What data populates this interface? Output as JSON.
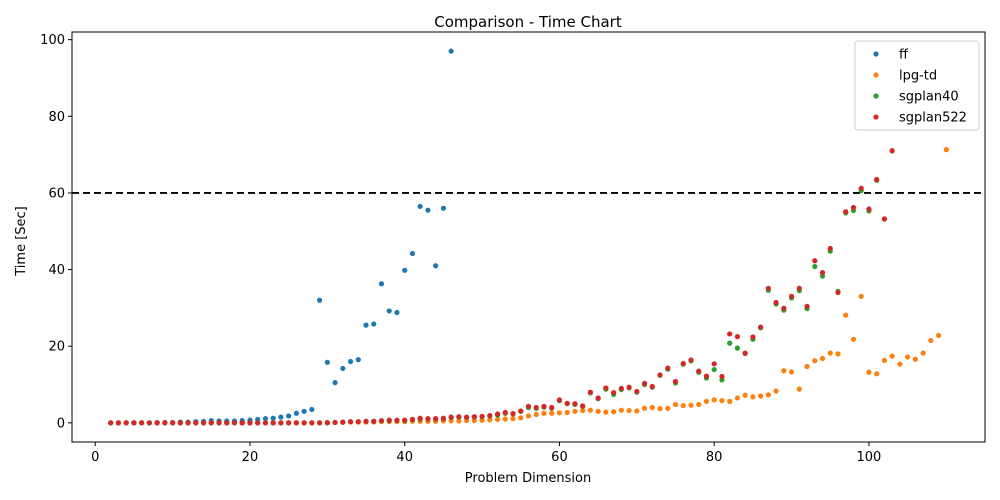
{
  "chart_data": {
    "type": "scatter",
    "title": "Comparison - Time Chart",
    "xlabel": "Problem Dimension",
    "ylabel": "Time [Sec]",
    "xlim": [
      -3,
      115
    ],
    "ylim": [
      -5,
      102
    ],
    "xticks": [
      0,
      20,
      40,
      60,
      80,
      100
    ],
    "yticks": [
      0,
      20,
      40,
      60,
      80,
      100
    ],
    "grid": false,
    "legend_position": "top-right",
    "reference_line": {
      "y": 60,
      "style": "dashed",
      "color": "#000000"
    },
    "series": [
      {
        "name": "ff",
        "color": "#1f77b4",
        "x": [
          2,
          3,
          4,
          5,
          6,
          7,
          8,
          9,
          10,
          11,
          12,
          13,
          14,
          15,
          16,
          17,
          18,
          19,
          20,
          21,
          22,
          23,
          24,
          25,
          26,
          27,
          28,
          29,
          30,
          31,
          32,
          33,
          34,
          35,
          36,
          37,
          38,
          39,
          40,
          41,
          42,
          43,
          44,
          45,
          46
        ],
        "y": [
          0,
          0,
          0,
          0,
          0,
          0,
          0.1,
          0.1,
          0.1,
          0.2,
          0.2,
          0.3,
          0.4,
          0.6,
          0.5,
          0.5,
          0.5,
          0.6,
          0.7,
          0.9,
          1.1,
          1.2,
          1.5,
          1.8,
          2.5,
          3.0,
          3.5,
          32,
          15.8,
          10.5,
          14.2,
          16,
          16.5,
          25.5,
          25.8,
          36.3,
          29.2,
          28.8,
          39.8,
          44.2,
          56.5,
          55.5,
          41,
          56,
          97
        ]
      },
      {
        "name": "lpg-td",
        "color": "#ff7f0e",
        "x": [
          2,
          3,
          4,
          5,
          6,
          7,
          8,
          9,
          10,
          11,
          12,
          13,
          14,
          15,
          16,
          17,
          18,
          19,
          20,
          21,
          22,
          23,
          24,
          25,
          26,
          27,
          28,
          29,
          30,
          31,
          32,
          33,
          34,
          35,
          36,
          37,
          38,
          39,
          40,
          41,
          42,
          43,
          44,
          45,
          46,
          47,
          48,
          49,
          50,
          51,
          52,
          53,
          54,
          55,
          56,
          57,
          58,
          59,
          60,
          61,
          62,
          63,
          64,
          65,
          66,
          67,
          68,
          69,
          70,
          71,
          72,
          73,
          74,
          75,
          76,
          77,
          78,
          79,
          80,
          81,
          82,
          83,
          84,
          85,
          86,
          87,
          88,
          89,
          90,
          91,
          92,
          93,
          94,
          95,
          96,
          97,
          98,
          99,
          100,
          101,
          102,
          103,
          104,
          105,
          106,
          107,
          108,
          109,
          110
        ],
        "y": [
          0,
          0,
          0,
          0,
          0,
          0,
          0,
          0,
          0,
          0,
          0,
          0,
          0,
          0,
          0,
          0,
          0,
          0,
          0,
          0,
          0,
          0,
          0,
          0,
          0,
          0,
          0,
          0,
          0.1,
          0.1,
          0.1,
          0.2,
          0.2,
          0.2,
          0.2,
          0.3,
          0.3,
          0.3,
          0.3,
          0.4,
          0.4,
          0.4,
          0.4,
          0.5,
          0.5,
          0.5,
          0.6,
          0.6,
          0.7,
          0.8,
          0.9,
          1.0,
          1.1,
          1.3,
          1.8,
          2.2,
          2.5,
          2.5,
          2.6,
          2.7,
          3.0,
          3.2,
          3.3,
          3.0,
          2.8,
          2.9,
          3.3,
          3.2,
          3.1,
          3.8,
          4.0,
          3.7,
          3.8,
          4.8,
          4.5,
          4.6,
          4.8,
          5.6,
          6.0,
          5.8,
          5.6,
          6.5,
          7.2,
          6.8,
          7.0,
          7.3,
          8.3,
          13.6,
          13.3,
          8.8,
          14.7,
          16.2,
          16.8,
          18.2,
          18.0,
          28.1,
          21.8,
          33.0,
          13.2,
          12.8,
          16.3,
          17.4,
          15.3,
          17.2,
          16.6,
          18.2,
          21.5,
          22.8,
          71.3
        ]
      },
      {
        "name": "sgplan40",
        "color": "#2ca02c",
        "x": [
          2,
          3,
          4,
          5,
          6,
          7,
          8,
          9,
          10,
          11,
          12,
          13,
          14,
          15,
          16,
          17,
          18,
          19,
          20,
          21,
          22,
          23,
          24,
          25,
          26,
          27,
          28,
          29,
          30,
          31,
          32,
          33,
          34,
          35,
          36,
          37,
          38,
          39,
          40,
          41,
          42,
          43,
          44,
          45,
          46,
          47,
          48,
          49,
          50,
          51,
          52,
          53,
          54,
          55,
          56,
          57,
          58,
          59,
          60,
          61,
          62,
          63,
          64,
          65,
          66,
          67,
          68,
          69,
          70,
          71,
          72,
          73,
          74,
          75,
          76,
          77,
          78,
          79,
          80,
          81,
          82,
          83,
          84,
          85,
          86,
          87,
          88,
          89,
          90,
          91,
          92,
          93,
          94,
          95,
          96,
          97,
          98,
          99,
          100,
          101,
          102,
          103
        ],
        "y": [
          0,
          0,
          0,
          0,
          0,
          0,
          0,
          0,
          0,
          0,
          0,
          0,
          0,
          0,
          0,
          0,
          0,
          0,
          0,
          0,
          0,
          0,
          0,
          0,
          0,
          0,
          0,
          0,
          0,
          0.1,
          0.2,
          0.3,
          0.3,
          0.4,
          0.4,
          0.5,
          0.6,
          0.6,
          0.6,
          0.8,
          1.0,
          1.0,
          1.0,
          1.1,
          1.4,
          1.5,
          1.4,
          1.5,
          1.6,
          1.8,
          2.0,
          2.5,
          2.3,
          3.0,
          4.0,
          3.8,
          4.1,
          3.8,
          5.8,
          5.0,
          4.8,
          4.3,
          7.8,
          6.3,
          8.8,
          7.4,
          8.7,
          9.1,
          8.0,
          10.0,
          9.3,
          12.4,
          14.0,
          10.4,
          15.3,
          16.2,
          13.2,
          11.7,
          13.9,
          11.2,
          20.8,
          19.5,
          18.1,
          21.8,
          24.8,
          34.6,
          31.0,
          29.4,
          32.6,
          34.5,
          29.8,
          40.8,
          38.3,
          44.8,
          34.3,
          54.8,
          55.4,
          60.6,
          55.3,
          63.3,
          53.2,
          71.0
        ]
      },
      {
        "name": "sgplan522",
        "color": "#d62728",
        "x": [
          2,
          3,
          4,
          5,
          6,
          7,
          8,
          9,
          10,
          11,
          12,
          13,
          14,
          15,
          16,
          17,
          18,
          19,
          20,
          21,
          22,
          23,
          24,
          25,
          26,
          27,
          28,
          29,
          30,
          31,
          32,
          33,
          34,
          35,
          36,
          37,
          38,
          39,
          40,
          41,
          42,
          43,
          44,
          45,
          46,
          47,
          48,
          49,
          50,
          51,
          52,
          53,
          54,
          55,
          56,
          57,
          58,
          59,
          60,
          61,
          62,
          63,
          64,
          65,
          66,
          67,
          68,
          69,
          70,
          71,
          72,
          73,
          74,
          75,
          76,
          77,
          78,
          79,
          80,
          81,
          82,
          83,
          84,
          85,
          86,
          87,
          88,
          89,
          90,
          91,
          92,
          93,
          94,
          95,
          96,
          97,
          98,
          99,
          100,
          101,
          102,
          103
        ],
        "y": [
          0,
          0,
          0,
          0,
          0,
          0,
          0,
          0,
          0,
          0,
          0,
          0,
          0,
          0,
          0,
          0,
          0,
          0,
          0,
          0,
          0,
          0,
          0,
          0,
          0,
          0,
          0,
          0,
          0,
          0.1,
          0.2,
          0.3,
          0.3,
          0.4,
          0.4,
          0.6,
          0.7,
          0.7,
          0.7,
          0.9,
          1.2,
          1.1,
          1.1,
          1.2,
          1.5,
          1.6,
          1.5,
          1.6,
          1.7,
          1.9,
          2.3,
          2.7,
          2.4,
          3.1,
          4.3,
          4.0,
          4.3,
          4.0,
          6.0,
          5.1,
          5.0,
          4.4,
          8.0,
          6.5,
          9.1,
          7.9,
          9.0,
          9.3,
          8.2,
          10.3,
          9.5,
          12.5,
          14.3,
          10.8,
          15.5,
          16.4,
          13.5,
          12.2,
          15.4,
          12.1,
          23.2,
          22.5,
          18.2,
          22.4,
          25.0,
          35.1,
          31.4,
          29.9,
          33.0,
          35.1,
          30.4,
          42.3,
          39.2,
          45.5,
          34.0,
          55.1,
          56.2,
          61.2,
          55.8,
          63.5,
          53.2,
          71.0
        ]
      }
    ]
  }
}
